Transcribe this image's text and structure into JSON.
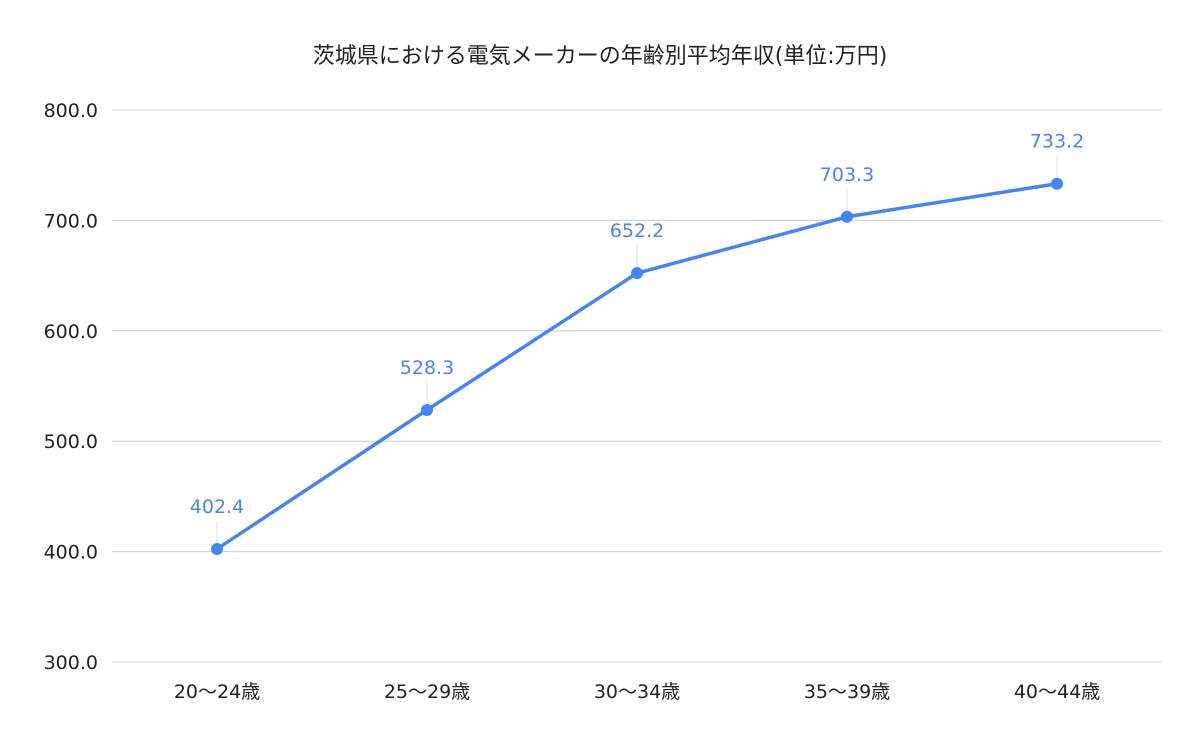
{
  "chart_data": {
    "type": "line",
    "title": "茨城県における電気メーカーの年齢別平均年収(単位:万円)",
    "xlabel": "",
    "ylabel": "",
    "categories": [
      "20〜24歳",
      "25〜29歳",
      "30〜34歳",
      "35〜39歳",
      "40〜44歳"
    ],
    "series": [
      {
        "values": [
          402.4,
          528.3,
          652.2,
          703.3,
          733.2
        ]
      }
    ],
    "data_labels": [
      "402.4",
      "528.3",
      "652.2",
      "703.3",
      "733.2"
    ],
    "ylim": [
      300,
      800
    ],
    "yticks": [
      300,
      400,
      500,
      600,
      700,
      800
    ],
    "ytick_labels": [
      "300.0",
      "400.0",
      "500.0",
      "600.0",
      "700.0",
      "800.0"
    ],
    "grid": true,
    "legend": "none",
    "colors": {
      "line": "#4285f4",
      "grid": "#cccccc",
      "label": "#4a86e8",
      "text": "#222222"
    }
  }
}
